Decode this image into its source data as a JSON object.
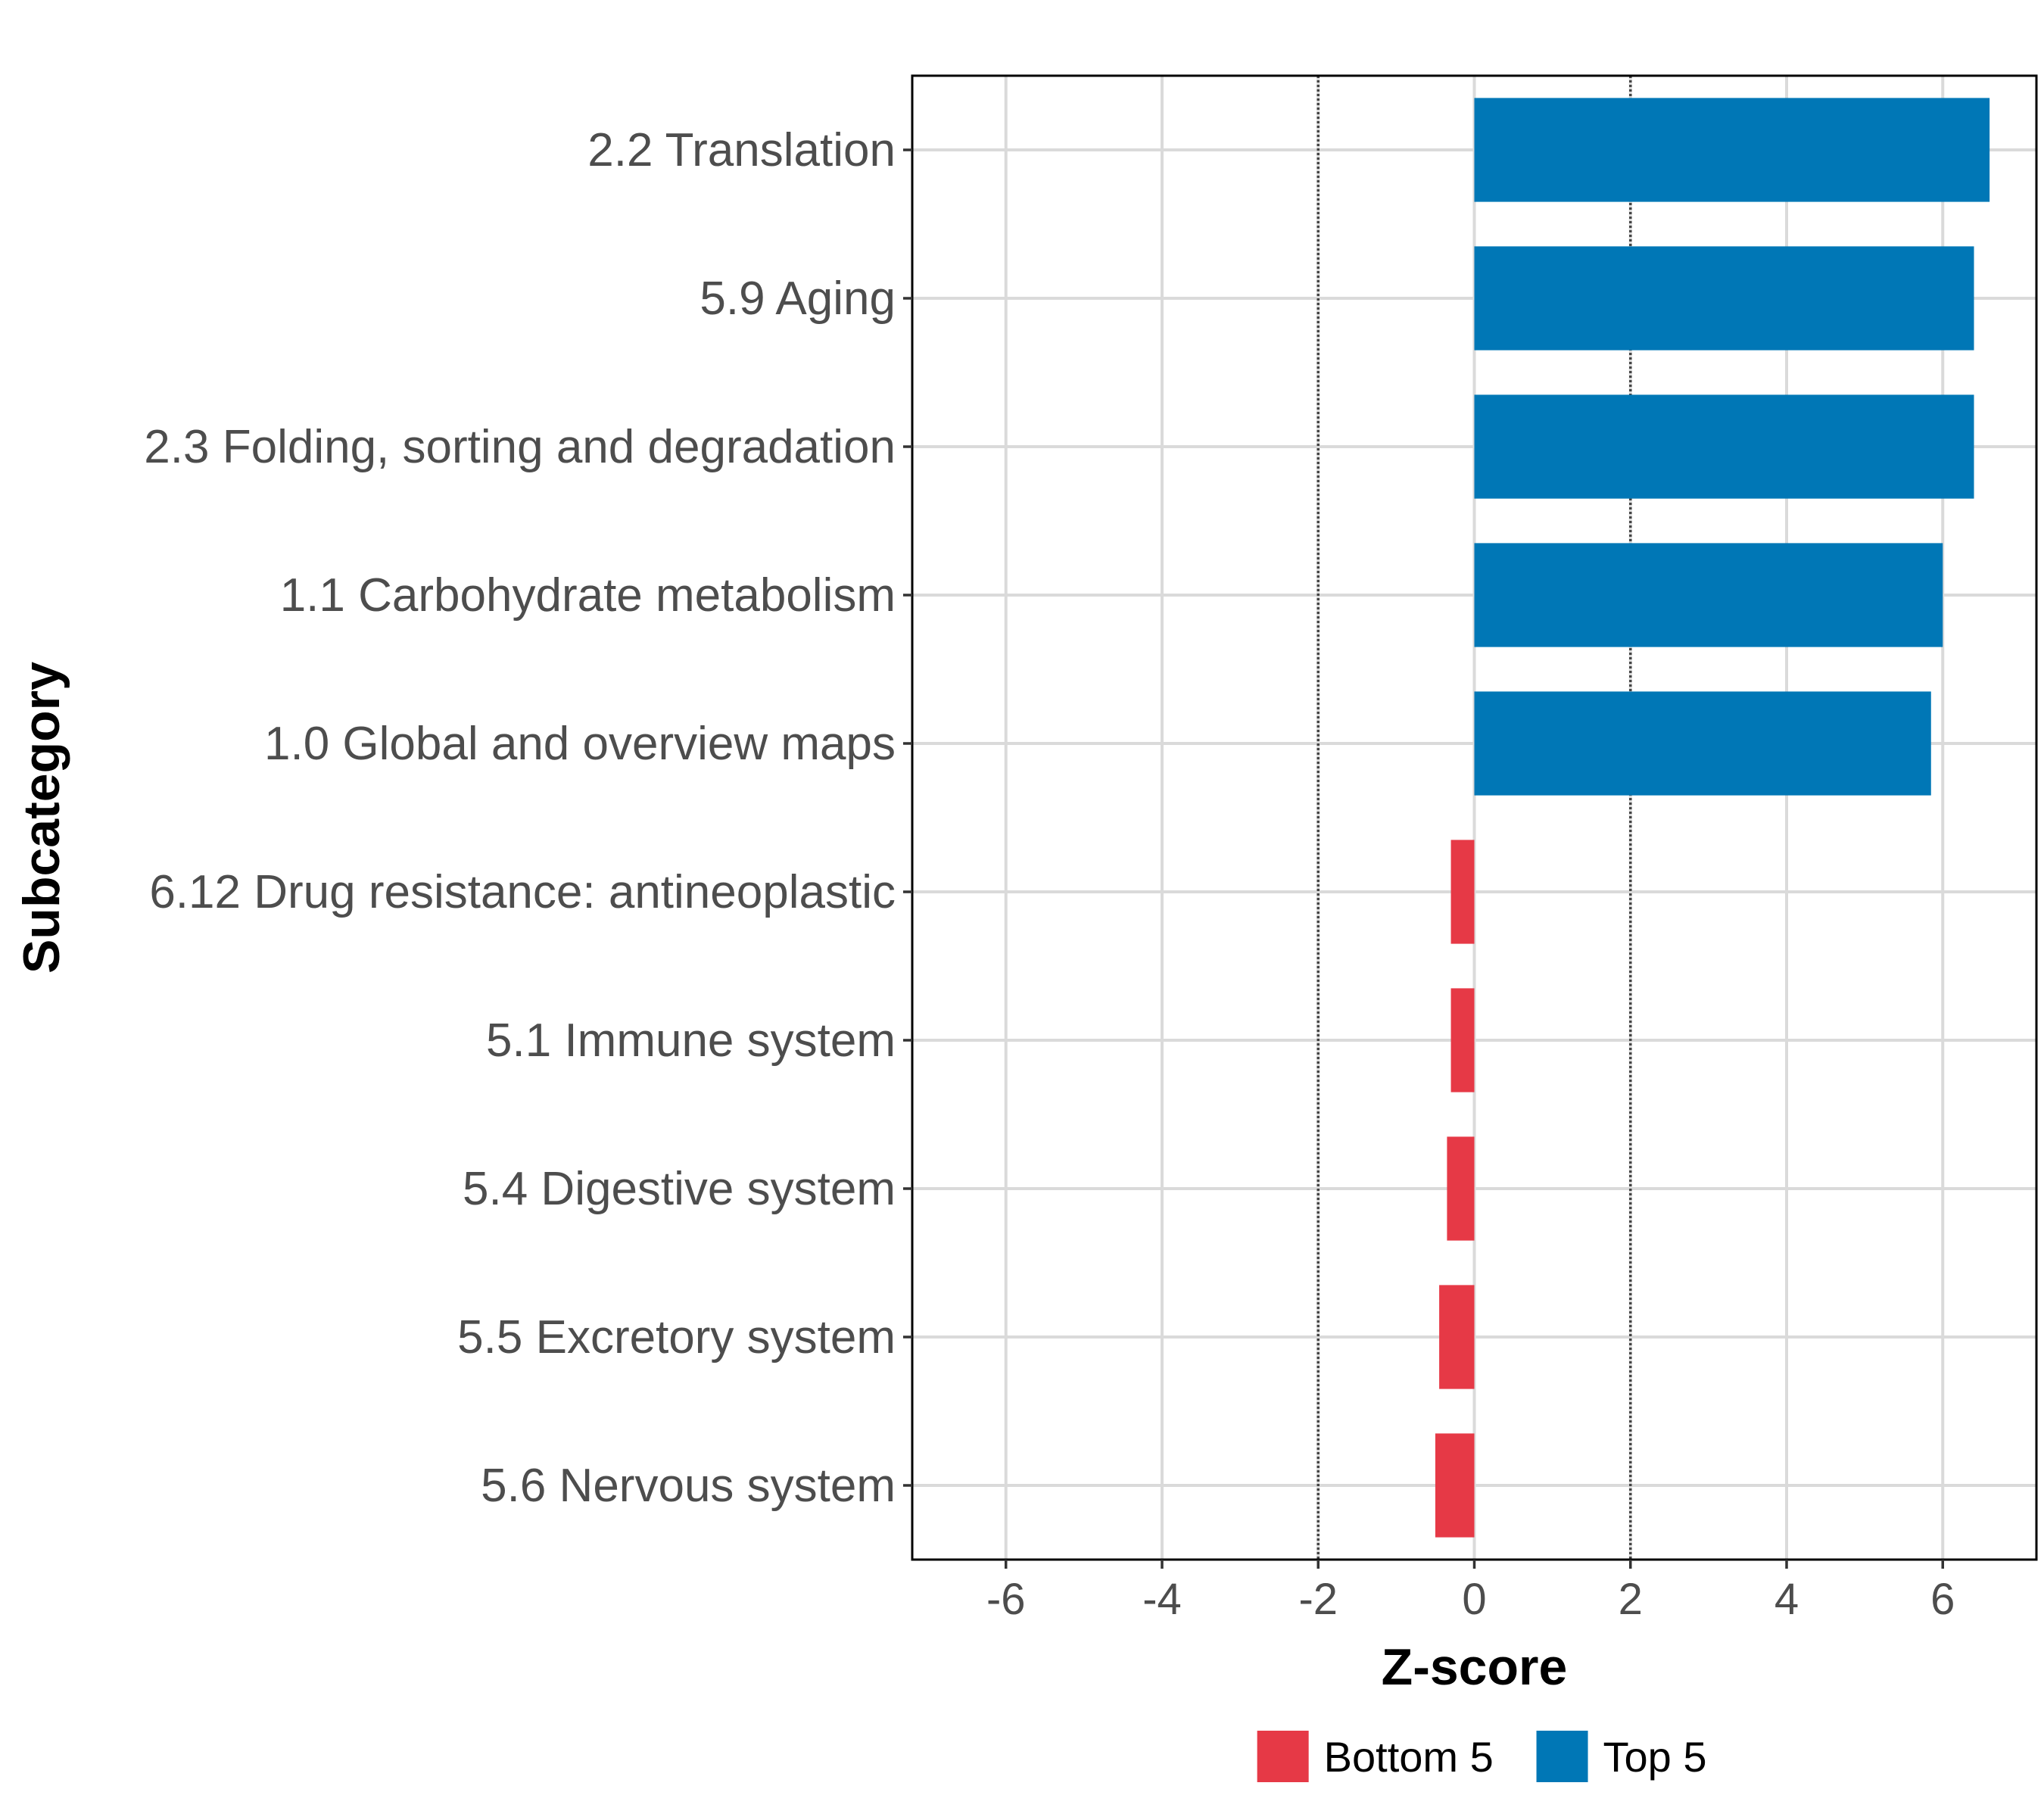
{
  "chart_data": {
    "type": "bar",
    "orientation": "horizontal",
    "categories": [
      "2.2 Translation",
      "5.9 Aging",
      "2.3 Folding, sorting and degradation",
      "1.1 Carbohydrate metabolism",
      "1.0 Global and overview maps",
      "6.12 Drug resistance: antineoplastic",
      "5.1 Immune system",
      "5.4 Digestive system",
      "5.5 Excretory system",
      "5.6 Nervous system"
    ],
    "values": [
      6.6,
      6.4,
      6.4,
      6.0,
      5.85,
      -0.3,
      -0.3,
      -0.35,
      -0.45,
      -0.5
    ],
    "groups": [
      "Top 5",
      "Top 5",
      "Top 5",
      "Top 5",
      "Top 5",
      "Bottom 5",
      "Bottom 5",
      "Bottom 5",
      "Bottom 5",
      "Bottom 5"
    ],
    "xlabel": "Z-score",
    "ylabel": "Subcategory",
    "xlim": [
      -7.2,
      7.2
    ],
    "xticks": [
      -6,
      -4,
      -2,
      0,
      2,
      4,
      6
    ],
    "xtick_labels": [
      "-6",
      "-4",
      "-2",
      "0",
      "2",
      "4",
      "6"
    ],
    "reference_lines": [
      -2,
      2
    ],
    "grid": true,
    "legend": {
      "position": "bottom",
      "entries": [
        {
          "label": "Bottom 5",
          "color": "#E63946"
        },
        {
          "label": "Top 5",
          "color": "#0077B6"
        }
      ]
    },
    "colors": {
      "Top 5": "#0077B6",
      "Bottom 5": "#E63946"
    }
  }
}
